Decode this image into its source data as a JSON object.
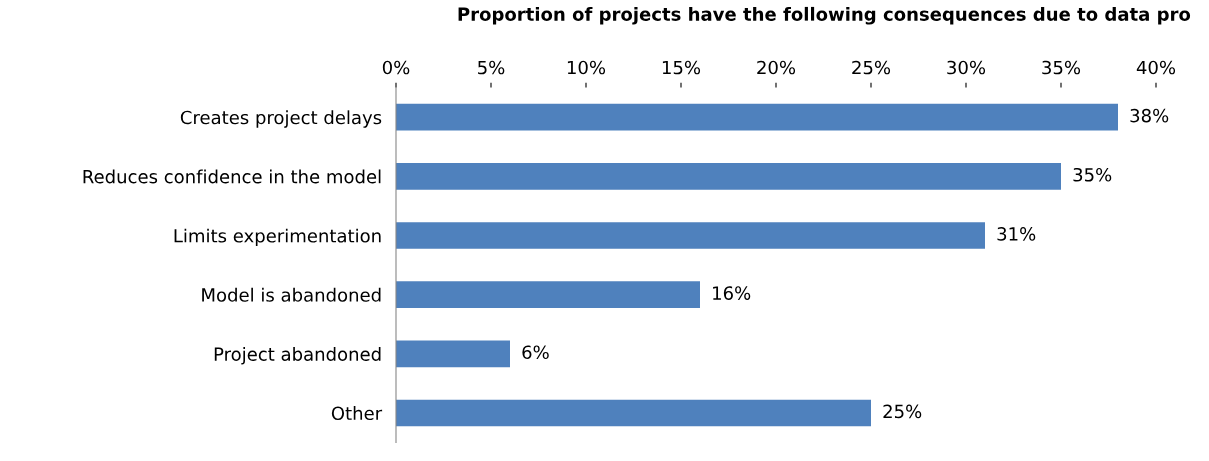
{
  "chart_data": {
    "type": "bar",
    "orientation": "horizontal",
    "title": "Proportion of projects have the following consequences due to data pro",
    "categories": [
      "Creates project delays",
      "Reduces confidence in the model",
      "Limits experimentation",
      "Model is abandoned",
      "Project abandoned",
      "Other"
    ],
    "values": [
      38,
      35,
      31,
      16,
      6,
      25
    ],
    "color": "#4f81bd",
    "value_labels": [
      "38%",
      "35%",
      "31%",
      "16%",
      "6%",
      "25%"
    ],
    "xlim": [
      0,
      40
    ],
    "xticks": [
      {
        "value": 0,
        "label": "0%"
      },
      {
        "value": 5,
        "label": "5%"
      },
      {
        "value": 10,
        "label": "10%"
      },
      {
        "value": 15,
        "label": "15%"
      },
      {
        "value": 20,
        "label": "20%"
      },
      {
        "value": 25,
        "label": "25%"
      },
      {
        "value": 30,
        "label": "30%"
      },
      {
        "value": 35,
        "label": "35%"
      },
      {
        "value": 40,
        "label": "40%"
      }
    ],
    "grid": false,
    "legend": false
  }
}
